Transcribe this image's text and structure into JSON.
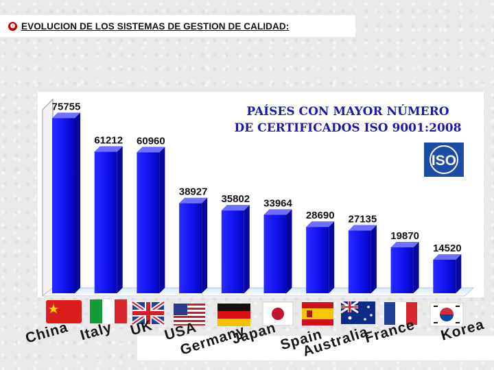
{
  "header": {
    "bullet_glyph": "❶",
    "text": "EVOLUCION DE LOS SISTEMAS DE GESTION DE CALIDAD:"
  },
  "chart_data": {
    "type": "bar",
    "title_line1": "PAÍSES CON MAYOR NÚMERO",
    "title_line2": "DE CERTIFICADOS ISO 9001:2008",
    "xlabel": "",
    "ylabel": "",
    "ylim": [
      0,
      80000
    ],
    "grid": false,
    "categories": [
      "China",
      "Italy",
      "UK",
      "USA",
      "Germany",
      "Japan",
      "Spain",
      "Australia",
      "France",
      "Korea"
    ],
    "values": [
      75755,
      61212,
      60960,
      38927,
      35802,
      33964,
      28690,
      27135,
      19870,
      14520
    ],
    "value_labels": [
      "75755",
      "61212",
      "60960",
      "38927",
      "35802",
      "33964",
      "28690",
      "27135",
      "19870",
      "14520"
    ],
    "flag_icons": [
      "flag-china-icon",
      "flag-italy-icon",
      "flag-uk-icon",
      "flag-usa-icon",
      "flag-germany-icon",
      "flag-japan-icon",
      "flag-spain-icon",
      "flag-australia-icon",
      "flag-france-icon",
      "flag-korea-icon"
    ],
    "logo_text": "ISO",
    "colors": {
      "bar": "#1212ee",
      "bar_dark": "#0808a0",
      "bar_light": "#6f6fff",
      "title": "#1a1aa6",
      "bullet": "#c00000"
    }
  }
}
